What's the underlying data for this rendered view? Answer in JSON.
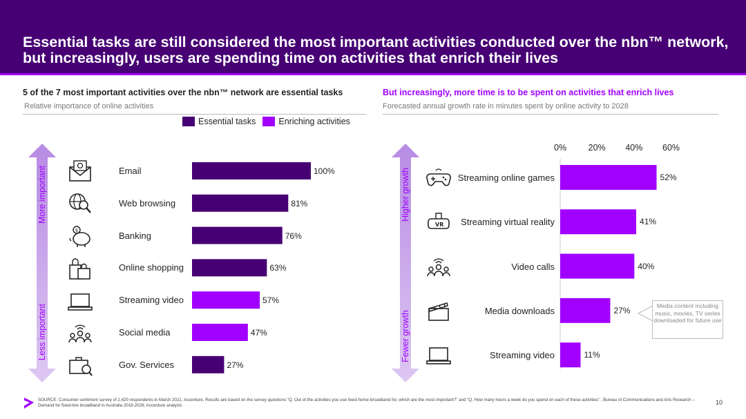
{
  "header": {
    "title": "Essential tasks are still considered the most important activities conducted over the nbn™ network, but increasingly, users are spending time on activities that enrich their lives"
  },
  "left": {
    "subtitle": "5 of the 7 most important activities over the nbn™ network are essential tasks",
    "caption": "Relative importance of online activities",
    "axis_top": "More important",
    "axis_bottom": "Less important",
    "legend": [
      {
        "label": "Essential tasks",
        "color": "#460073"
      },
      {
        "label": "Enriching activities",
        "color": "#a100ff"
      }
    ]
  },
  "right": {
    "subtitle": "But increasingly, more time is to be spent on activities that enrich lives",
    "caption": "Forecasted annual growth rate in minutes spent by online activity to 2028",
    "axis_top": "Higher growth",
    "axis_bottom": "Fewer growth",
    "callout": "Media content including music, movies, TV series downloaded for future use"
  },
  "colors": {
    "essential": "#460073",
    "enriching": "#a100ff",
    "header": "#460073",
    "axis": "#a100ff"
  },
  "chart_data": [
    {
      "type": "bar",
      "orientation": "horizontal",
      "title": "Relative importance of online activities",
      "categories": [
        "Email",
        "Web browsing",
        "Banking",
        "Online shopping",
        "Streaming video",
        "Social media",
        "Gov. Services"
      ],
      "values": [
        100,
        81,
        76,
        63,
        57,
        47,
        27
      ],
      "value_labels": [
        "100%",
        "81%",
        "76%",
        "63%",
        "57%",
        "47%",
        "27%"
      ],
      "groups": [
        "essential",
        "essential",
        "essential",
        "essential",
        "enriching",
        "enriching",
        "essential"
      ],
      "icons": [
        "email-icon",
        "web-browsing-icon",
        "piggy-bank-icon",
        "shopping-bags-icon",
        "laptop-icon",
        "social-people-icon",
        "briefcase-icon"
      ],
      "xlim": [
        0,
        100
      ]
    },
    {
      "type": "bar",
      "orientation": "horizontal",
      "title": "Forecasted annual growth rate in minutes spent by online activity to 2028",
      "categories": [
        "Streaming online games",
        "Streaming virtual reality",
        "Video calls",
        "Media downloads",
        "Streaming video"
      ],
      "values": [
        52,
        41,
        40,
        27,
        11
      ],
      "value_labels": [
        "52%",
        "41%",
        "40%",
        "27%",
        "11%"
      ],
      "icons": [
        "gamepad-icon",
        "vr-headset-icon",
        "video-call-icon",
        "clapperboard-icon",
        "laptop-icon"
      ],
      "xlim": [
        0,
        60
      ],
      "ticks": [
        "0%",
        "20%",
        "40%",
        "60%"
      ]
    }
  ],
  "footer": {
    "source": "SOURCE: Consumer sentiment survey of 2,420 respondents in March 2021, Accenture. Results are based on the survey questions “Q. Out of the activities you use fixed home broadband for, which are the most important?” and “Q. How many hours a week do you spend on each of these activities” ; Bureau of Communications and Arts Research – Demand for fixed-line broadband in Australia 2018-2028; Accenture analysis",
    "page": "10"
  }
}
